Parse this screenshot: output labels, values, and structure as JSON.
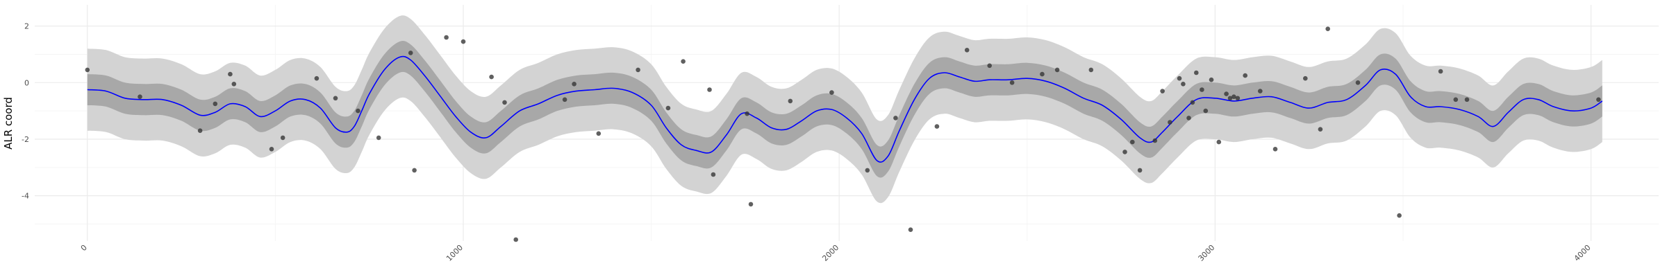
{
  "chart_data": {
    "type": "scatter",
    "xlabel": "",
    "ylabel": "ALR coord",
    "xlim": [
      -140,
      4180
    ],
    "ylim": [
      -5.6,
      2.75
    ],
    "x_ticks": [
      0,
      1000,
      2000,
      3000,
      4000
    ],
    "x_tick_labels": [
      "0",
      "1000",
      "2000",
      "3000",
      "4000"
    ],
    "y_ticks": [
      -4,
      -2,
      0,
      2
    ],
    "y_tick_labels": [
      "-4",
      "-2",
      "0",
      "2"
    ],
    "grid": true,
    "legend": "none",
    "colors": {
      "outer_band": "#d3d3d3",
      "inner_band": "#a8a8a8",
      "mean_line": "#0000ff",
      "points": "#333333",
      "grid_major": "#ebebeb",
      "grid_minor": "#f5f5f5"
    },
    "mean": {
      "x": [
        0,
        50,
        100,
        150,
        200,
        250,
        300,
        340,
        380,
        420,
        460,
        500,
        540,
        580,
        620,
        660,
        690,
        710,
        730,
        750,
        790,
        830,
        860,
        900,
        940,
        980,
        1020,
        1060,
        1100,
        1150,
        1200,
        1250,
        1300,
        1350,
        1400,
        1450,
        1500,
        1540,
        1580,
        1620,
        1660,
        1700,
        1740,
        1780,
        1820,
        1860,
        1900,
        1940,
        1980,
        2020,
        2060,
        2100,
        2130,
        2160,
        2200,
        2240,
        2280,
        2320,
        2360,
        2400,
        2450,
        2500,
        2550,
        2600,
        2650,
        2700,
        2750,
        2800,
        2830,
        2860,
        2900,
        2950,
        3000,
        3050,
        3100,
        3150,
        3200,
        3250,
        3300,
        3350,
        3400,
        3440,
        3480,
        3520,
        3560,
        3600,
        3650,
        3700,
        3740,
        3780,
        3820,
        3860,
        3900,
        3950,
        4000,
        4030
      ],
      "y": [
        -0.25,
        -0.3,
        -0.55,
        -0.6,
        -0.6,
        -0.8,
        -1.15,
        -1.05,
        -0.75,
        -0.85,
        -1.2,
        -1.0,
        -0.65,
        -0.6,
        -0.9,
        -1.6,
        -1.75,
        -1.55,
        -1.0,
        -0.4,
        0.45,
        0.9,
        0.8,
        0.2,
        -0.5,
        -1.2,
        -1.75,
        -1.95,
        -1.55,
        -1.0,
        -0.75,
        -0.45,
        -0.3,
        -0.25,
        -0.2,
        -0.35,
        -0.8,
        -1.6,
        -2.2,
        -2.4,
        -2.45,
        -1.85,
        -1.1,
        -1.25,
        -1.6,
        -1.65,
        -1.35,
        -1.0,
        -0.95,
        -1.25,
        -1.8,
        -2.75,
        -2.6,
        -1.7,
        -0.6,
        0.15,
        0.35,
        0.2,
        0.05,
        0.1,
        0.1,
        0.15,
        0.05,
        -0.2,
        -0.55,
        -0.8,
        -1.3,
        -1.95,
        -2.1,
        -1.75,
        -1.2,
        -0.6,
        -0.55,
        -0.65,
        -0.55,
        -0.5,
        -0.7,
        -0.9,
        -0.7,
        -0.6,
        -0.1,
        0.45,
        0.3,
        -0.5,
        -0.85,
        -0.85,
        -0.95,
        -1.2,
        -1.55,
        -1.05,
        -0.6,
        -0.6,
        -0.85,
        -1.0,
        -0.9,
        -0.65
      ],
      "inner_halfwidth": 0.55,
      "outer_halfwidth": 1.45
    },
    "points": {
      "x": [
        0,
        140,
        300,
        340,
        380,
        390,
        490,
        520,
        610,
        660,
        720,
        775,
        860,
        870,
        955,
        1000,
        1075,
        1110,
        1140,
        1270,
        1295,
        1360,
        1465,
        1545,
        1585,
        1655,
        1665,
        1755,
        1765,
        1870,
        1980,
        2075,
        2150,
        2190,
        2260,
        2340,
        2400,
        2460,
        2540,
        2580,
        2670,
        2760,
        2780,
        2800,
        2840,
        2860,
        2880,
        2905,
        2915,
        2930,
        2940,
        2950,
        2965,
        2975,
        2990,
        3010,
        3030,
        3040,
        3050,
        3060,
        3080,
        3120,
        3160,
        3240,
        3280,
        3300,
        3380,
        3490,
        3600,
        3640,
        3670,
        4020
      ],
      "y": [
        0.45,
        -0.5,
        -1.7,
        -0.75,
        0.3,
        -0.05,
        -2.35,
        -1.95,
        0.15,
        -0.55,
        -1.0,
        -1.95,
        1.05,
        -3.1,
        1.6,
        1.45,
        0.2,
        -0.7,
        -5.55,
        -0.6,
        -0.05,
        -1.8,
        0.45,
        -0.9,
        0.75,
        -0.25,
        -3.25,
        -1.1,
        -4.3,
        -0.65,
        -0.35,
        -3.1,
        -1.25,
        -5.2,
        -1.55,
        1.15,
        0.6,
        0.0,
        0.3,
        0.45,
        0.45,
        -2.45,
        -2.1,
        -3.1,
        -2.05,
        -0.3,
        -1.4,
        0.15,
        -0.05,
        -1.25,
        -0.7,
        0.35,
        -0.25,
        -1.0,
        0.1,
        -2.1,
        -0.4,
        -0.55,
        -0.5,
        -0.55,
        0.25,
        -0.3,
        -2.35,
        0.15,
        -1.65,
        1.9,
        0.0,
        -4.7,
        0.4,
        -0.6,
        -0.6,
        -0.6
      ]
    }
  }
}
